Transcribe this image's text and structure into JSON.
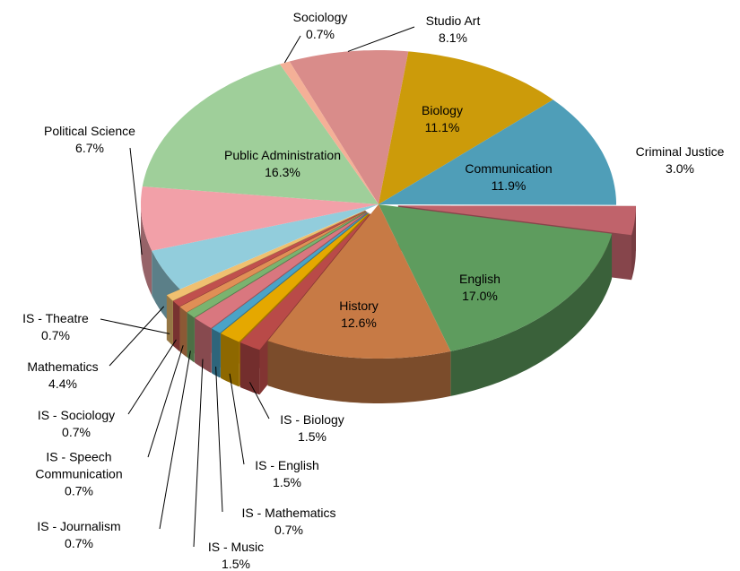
{
  "chart_data": {
    "type": "pie3d",
    "categories": [
      "Studio Art",
      "Biology",
      "Communication",
      "Criminal Justice",
      "English",
      "History",
      "IS - Biology",
      "IS - English",
      "IS - Mathematics",
      "IS - Music",
      "IS - Journalism",
      "IS - Speech Communication",
      "IS - Sociology",
      "IS - Theatre",
      "Mathematics",
      "Political Science",
      "Public Administration",
      "Sociology"
    ],
    "values": [
      8.1,
      11.1,
      11.9,
      3.0,
      17.0,
      12.6,
      1.5,
      1.5,
      0.7,
      1.5,
      0.7,
      0.7,
      0.7,
      0.7,
      4.4,
      6.7,
      16.3,
      0.7
    ],
    "value_labels": [
      "8.1%",
      "11.1%",
      "11.9%",
      "3.0%",
      "17.0%",
      "12.6%",
      "1.5%",
      "1.5%",
      "0.7%",
      "1.5%",
      "0.7%",
      "0.7%",
      "0.7%",
      "0.7%",
      "4.4%",
      "6.7%",
      "16.3%",
      "0.7%"
    ],
    "colors": [
      "#d98c8a",
      "#cc9b0a",
      "#4f9eb8",
      "#c0636b",
      "#5e9c5e",
      "#c77a45",
      "#b94a48",
      "#e5a800",
      "#4aa3c7",
      "#d9777f",
      "#7ab36f",
      "#e08f56",
      "#c0504d",
      "#f0c070",
      "#92cddc",
      "#f2a0a8",
      "#9fcf9a",
      "#f4b097"
    ]
  }
}
